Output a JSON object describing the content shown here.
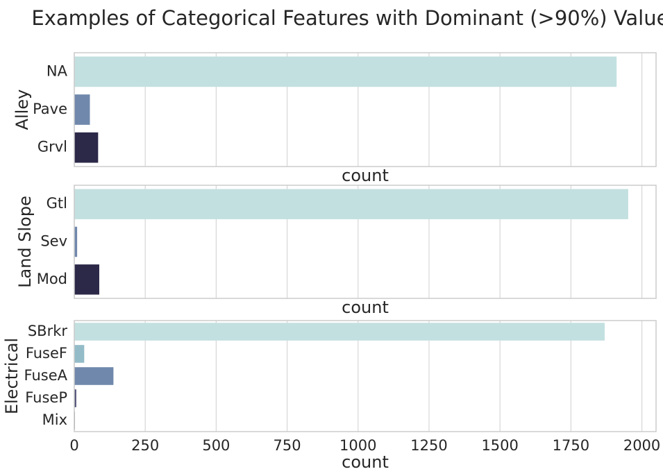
{
  "chart_data": {
    "title": "Examples of Categorical Features with Dominant (>90%) Values",
    "type": "bar",
    "orientation": "horizontal",
    "shared_x": true,
    "xlim": [
      0,
      2050
    ],
    "xticks": [
      0,
      250,
      500,
      750,
      1000,
      1250,
      1500,
      1750,
      2000
    ],
    "grid": true,
    "subplots": [
      {
        "ylabel": "Alley",
        "xlabel": "count",
        "categories": [
          "NA",
          "Pave",
          "Grvl"
        ],
        "values": [
          1911,
          55,
          84
        ],
        "colors": [
          "#c3e0e0",
          "#7088ac",
          "#2c2848"
        ]
      },
      {
        "ylabel": "Land Slope",
        "xlabel": "count",
        "categories": [
          "Gtl",
          "Sev",
          "Mod"
        ],
        "values": [
          1952,
          10,
          88
        ],
        "colors": [
          "#c3e0e0",
          "#7088ac",
          "#2c2848"
        ]
      },
      {
        "ylabel": "Electrical",
        "xlabel": "count",
        "categories": [
          "SBrkr",
          "FuseF",
          "FuseA",
          "FuseP",
          "Mix"
        ],
        "values": [
          1869,
          35,
          138,
          7,
          1
        ],
        "colors": [
          "#c3e0e0",
          "#93bcc8",
          "#7088ac",
          "#505078",
          "#2c2848"
        ]
      }
    ]
  }
}
